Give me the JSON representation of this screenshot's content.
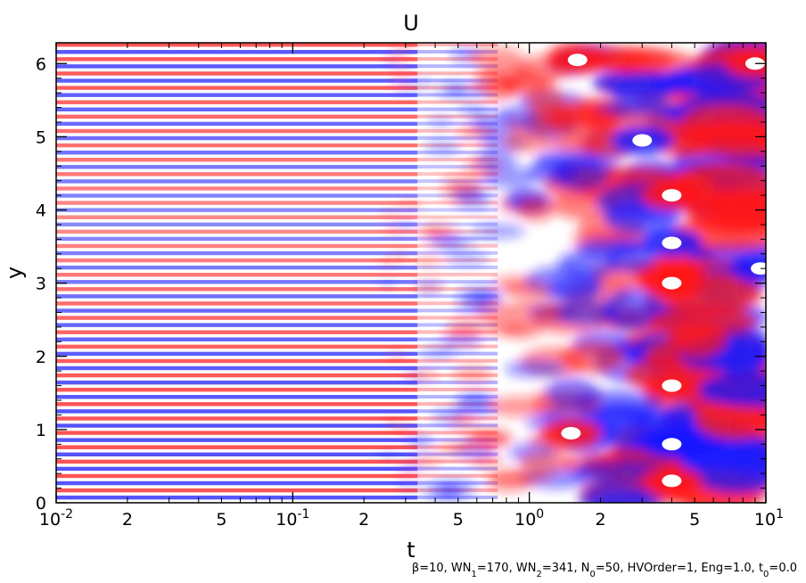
{
  "chart_data": {
    "type": "heatmap",
    "title": "U",
    "xlabel": "t",
    "ylabel": "y",
    "x_scale": "log",
    "xlim": [
      0.01,
      10
    ],
    "ylim": [
      0,
      6.2832
    ],
    "x_ticks": [
      {
        "value": 0.01,
        "mantissa": "10",
        "exp": "-2"
      },
      {
        "value": 0.02,
        "label": "2"
      },
      {
        "value": 0.05,
        "label": "5"
      },
      {
        "value": 0.1,
        "mantissa": "10",
        "exp": "-1"
      },
      {
        "value": 0.2,
        "label": "2"
      },
      {
        "value": 0.5,
        "label": "5"
      },
      {
        "value": 1,
        "mantissa": "10",
        "exp": "0"
      },
      {
        "value": 2,
        "label": "2"
      },
      {
        "value": 5,
        "label": "5"
      },
      {
        "value": 10,
        "mantissa": "10",
        "exp": "1"
      }
    ],
    "y_ticks": [
      {
        "value": 0,
        "label": "0"
      },
      {
        "value": 1,
        "label": "1"
      },
      {
        "value": 2,
        "label": "2"
      },
      {
        "value": 3,
        "label": "3"
      },
      {
        "value": 4,
        "label": "4"
      },
      {
        "value": 5,
        "label": "5"
      },
      {
        "value": 6,
        "label": "6"
      }
    ],
    "colormap": {
      "negative": "#1a1aff",
      "zero": "#ffffff",
      "positive": "#ff1a1a"
    },
    "grid": false,
    "legend": "none",
    "features": [
      {
        "t": 0.01,
        "y": 3.14,
        "description": "fine alternating red/blue horizontal bands across all y for t < 0.2"
      },
      {
        "t": 1.5,
        "y": 0.95,
        "sign": "positive"
      },
      {
        "t": 1.6,
        "y": 6.05,
        "sign": "positive"
      },
      {
        "t": 3.0,
        "y": 4.95,
        "sign": "negative"
      },
      {
        "t": 4.0,
        "y": 4.2,
        "sign": "positive"
      },
      {
        "t": 4.0,
        "y": 3.55,
        "sign": "negative"
      },
      {
        "t": 4.0,
        "y": 3.0,
        "sign": "positive"
      },
      {
        "t": 4.0,
        "y": 0.8,
        "sign": "negative"
      },
      {
        "t": 4.0,
        "y": 0.3,
        "sign": "positive"
      },
      {
        "t": 4.0,
        "y": 1.6,
        "sign": "positive"
      },
      {
        "t": 9.5,
        "y": 3.2,
        "sign": "negative"
      },
      {
        "t": 9.0,
        "y": 6.0,
        "sign": "positive"
      }
    ]
  },
  "footnote": {
    "parts": [
      {
        "text": "β=10, WN",
        "sub": false
      },
      {
        "text": "1",
        "sub": true
      },
      {
        "text": "=170, WN",
        "sub": false
      },
      {
        "text": "2",
        "sub": true
      },
      {
        "text": "=341, N",
        "sub": false
      },
      {
        "text": "0",
        "sub": true
      },
      {
        "text": "=50, HVOrder=1, Eng=1.0, t",
        "sub": false
      },
      {
        "text": "0",
        "sub": true
      },
      {
        "text": "=0.0",
        "sub": false
      }
    ]
  }
}
